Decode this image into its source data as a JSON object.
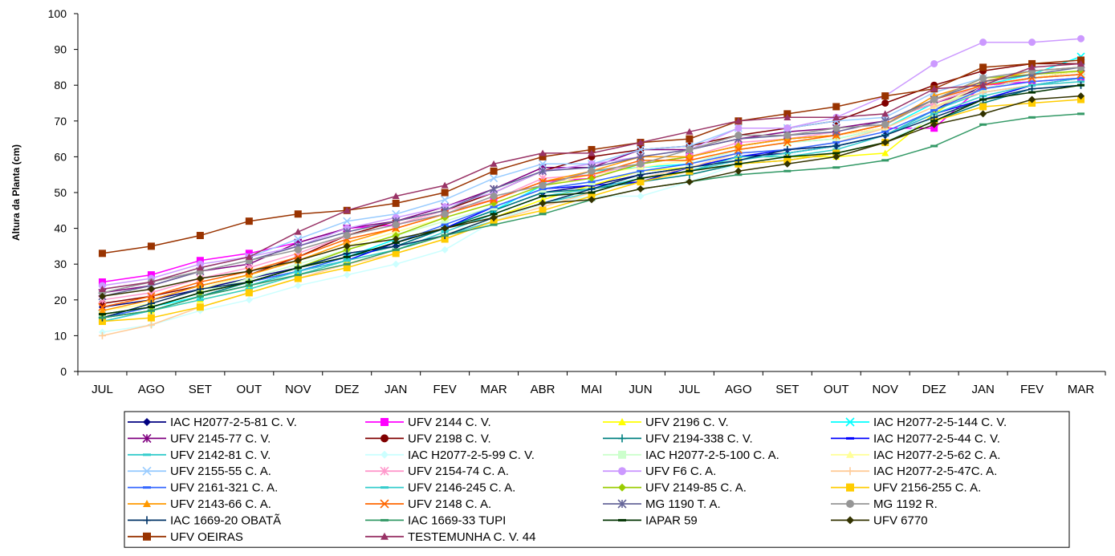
{
  "chart_data": {
    "type": "line",
    "title": "",
    "xlabel": "",
    "ylabel": "Altura da Planta (cm)",
    "ylim": [
      0,
      100
    ],
    "yticks": [
      "0",
      "10",
      "20",
      "30",
      "40",
      "50",
      "60",
      "70",
      "80",
      "90",
      "100"
    ],
    "grid": false,
    "legend_position": "bottom",
    "categories": [
      "JUL",
      "AGO",
      "SET",
      "OUT",
      "NOV",
      "DEZ",
      "JAN",
      "FEV",
      "MAR",
      "ABR",
      "MAI",
      "JUN",
      "JUL",
      "AGO",
      "SET",
      "OUT",
      "NOV",
      "DEZ",
      "JAN",
      "FEV",
      "MAR"
    ],
    "series": [
      {
        "name": "IAC H2077-2-5-81 C. V.",
        "color": "#000080",
        "marker": "diamond",
        "values": [
          18,
          20,
          23,
          26,
          29,
          33,
          35,
          40,
          45,
          50,
          52,
          55,
          57,
          60,
          61,
          63,
          66,
          73,
          80,
          82,
          83
        ]
      },
      {
        "name": "UFV 2144 C. V.",
        "color": "#FF00FF",
        "marker": "square",
        "values": [
          25,
          27,
          31,
          33,
          36,
          40,
          41,
          44,
          48,
          53,
          54,
          58,
          60,
          63,
          65,
          66,
          68,
          68,
          80,
          81,
          82
        ]
      },
      {
        "name": "UFV 2196 C. V.",
        "color": "#FFFF00",
        "marker": "triangle",
        "values": [
          15,
          17,
          20,
          23,
          27,
          31,
          34,
          38,
          43,
          48,
          52,
          56,
          57,
          60,
          60,
          60,
          61,
          72,
          81,
          83,
          84
        ]
      },
      {
        "name": "IAC H2077-2-5-144 C. V.",
        "color": "#00FFFF",
        "marker": "x",
        "values": [
          16,
          18,
          21,
          24,
          28,
          32,
          37,
          40,
          45,
          52,
          56,
          57,
          58,
          62,
          64,
          65,
          68,
          75,
          80,
          83,
          88
        ]
      },
      {
        "name": "UFV 2145-77 C. V.",
        "color": "#800080",
        "marker": "star",
        "values": [
          22,
          24,
          28,
          30,
          36,
          40,
          42,
          46,
          51,
          57,
          57,
          62,
          62,
          65,
          67,
          68,
          70,
          75,
          79,
          82,
          84
        ]
      },
      {
        "name": "UFV 2198 C. V.",
        "color": "#800000",
        "marker": "circle",
        "values": [
          19,
          21,
          24,
          27,
          32,
          38,
          42,
          45,
          50,
          56,
          60,
          62,
          63,
          66,
          68,
          70,
          75,
          80,
          84,
          86,
          86
        ]
      },
      {
        "name": "UFV 2194-338 C. V.",
        "color": "#008080",
        "marker": "plus",
        "values": [
          15,
          17,
          21,
          25,
          29,
          32,
          35,
          40,
          45,
          50,
          51,
          53,
          55,
          58,
          59,
          61,
          64,
          70,
          75,
          79,
          80
        ]
      },
      {
        "name": "IAC H2077-2-5-44 C. V.",
        "color": "#0000FF",
        "marker": "dash",
        "values": [
          16,
          18,
          22,
          25,
          28,
          31,
          36,
          40,
          46,
          51,
          52,
          53,
          57,
          60,
          62,
          63,
          66,
          72,
          76,
          80,
          82
        ]
      },
      {
        "name": "UFV 2142-81 C. V.",
        "color": "#33CCCC",
        "marker": "dash",
        "values": [
          14,
          17,
          20,
          23,
          27,
          31,
          34,
          38,
          42,
          47,
          50,
          54,
          56,
          60,
          60,
          62,
          66,
          73,
          78,
          80,
          82
        ]
      },
      {
        "name": "IAC H2077-2-5-99 C. V.",
        "color": "#CCFFFF",
        "marker": "diamond",
        "values": [
          11,
          13,
          17,
          20,
          24,
          27,
          30,
          34,
          42,
          47,
          49,
          49,
          53,
          58,
          59,
          61,
          64,
          71,
          76,
          79,
          80
        ]
      },
      {
        "name": "IAC H2077-2-5-100 C. A.",
        "color": "#CCFFCC",
        "marker": "square",
        "values": [
          16,
          18,
          22,
          26,
          30,
          34,
          38,
          42,
          46,
          51,
          53,
          56,
          58,
          62,
          64,
          65,
          68,
          74,
          79,
          82,
          83
        ]
      },
      {
        "name": "IAC H2077-2-5-62 C. A.",
        "color": "#FFFF99",
        "marker": "triangle",
        "values": [
          17,
          19,
          23,
          27,
          31,
          35,
          39,
          43,
          47,
          52,
          55,
          57,
          59,
          62,
          64,
          66,
          68,
          74,
          80,
          82,
          84
        ]
      },
      {
        "name": "UFV 2155-55 C. A.",
        "color": "#99CCFF",
        "marker": "x",
        "values": [
          23,
          25,
          29,
          32,
          37,
          42,
          44,
          48,
          54,
          58,
          58,
          62,
          63,
          68,
          68,
          70,
          71,
          78,
          82,
          84,
          85
        ]
      },
      {
        "name": "UFV 2154-74 C. A.",
        "color": "#FF99CC",
        "marker": "star",
        "values": [
          20,
          22,
          26,
          29,
          33,
          38,
          41,
          45,
          48,
          54,
          55,
          58,
          60,
          64,
          65,
          67,
          70,
          75,
          80,
          82,
          83
        ]
      },
      {
        "name": "UFV  F6 C. A.",
        "color": "#CC99FF",
        "marker": "circle",
        "values": [
          24,
          26,
          30,
          32,
          35,
          40,
          43,
          46,
          50,
          56,
          58,
          60,
          62,
          68,
          68,
          71,
          77,
          86,
          92,
          92,
          93
        ]
      },
      {
        "name": "IAC H2077-2-5-47C. A.",
        "color": "#FFCC99",
        "marker": "plus",
        "values": [
          10,
          13,
          18,
          22,
          26,
          30,
          33,
          37,
          42,
          46,
          50,
          54,
          57,
          61,
          62,
          64,
          68,
          74,
          78,
          80,
          81
        ]
      },
      {
        "name": "UFV 2161-321 C. A.",
        "color": "#3366FF",
        "marker": "dash",
        "values": [
          15,
          18,
          22,
          25,
          28,
          32,
          36,
          41,
          46,
          51,
          53,
          56,
          58,
          61,
          62,
          64,
          67,
          73,
          79,
          81,
          82
        ]
      },
      {
        "name": "UFV 2146-245 C. A.",
        "color": "#33CCCC",
        "marker": "dash",
        "values": [
          14,
          17,
          21,
          24,
          28,
          31,
          34,
          39,
          44,
          49,
          51,
          54,
          56,
          59,
          61,
          63,
          66,
          72,
          77,
          80,
          81
        ]
      },
      {
        "name": "UFV 2149-85 C. A.",
        "color": "#99CC00",
        "marker": "diamond",
        "values": [
          16,
          18,
          22,
          25,
          29,
          34,
          38,
          43,
          47,
          52,
          54,
          58,
          60,
          63,
          65,
          66,
          69,
          76,
          82,
          83,
          84
        ]
      },
      {
        "name": "UFV 2156-255 C. A.",
        "color": "#FFCC00",
        "marker": "square",
        "values": [
          14,
          15,
          18,
          22,
          26,
          29,
          33,
          37,
          42,
          45,
          49,
          53,
          56,
          58,
          59,
          61,
          64,
          70,
          74,
          75,
          76
        ]
      },
      {
        "name": "UFV 2143-66 C. A.",
        "color": "#FF9900",
        "marker": "triangle",
        "values": [
          17,
          20,
          24,
          27,
          31,
          36,
          40,
          44,
          48,
          53,
          56,
          60,
          60,
          63,
          65,
          66,
          69,
          77,
          81,
          84,
          85
        ]
      },
      {
        "name": "UFV 2148 C. A.",
        "color": "#FF6600",
        "marker": "x",
        "values": [
          18,
          21,
          25,
          28,
          32,
          37,
          40,
          44,
          48,
          53,
          55,
          59,
          59,
          62,
          64,
          66,
          69,
          76,
          80,
          82,
          83
        ]
      },
      {
        "name": "MG 1190 T. A.",
        "color": "#666699",
        "marker": "star",
        "values": [
          21,
          24,
          28,
          31,
          35,
          39,
          42,
          45,
          51,
          56,
          57,
          60,
          62,
          65,
          66,
          67,
          70,
          76,
          81,
          83,
          85
        ]
      },
      {
        "name": "MG 1192 R.",
        "color": "#969696",
        "marker": "circle",
        "values": [
          22,
          25,
          28,
          31,
          34,
          38,
          41,
          44,
          49,
          52,
          56,
          58,
          62,
          66,
          66,
          68,
          69,
          76,
          82,
          84,
          85
        ]
      },
      {
        "name": "IAC 1669-20 OBATÃ",
        "color": "#003366",
        "marker": "plus",
        "values": [
          15,
          19,
          23,
          25,
          29,
          33,
          35,
          38,
          43,
          47,
          51,
          55,
          57,
          59,
          62,
          63,
          66,
          71,
          76,
          79,
          80
        ]
      },
      {
        "name": "IAC 1669-33 TUPI",
        "color": "#339966",
        "marker": "dash",
        "values": [
          15,
          17,
          21,
          24,
          27,
          30,
          34,
          38,
          41,
          44,
          48,
          51,
          53,
          55,
          56,
          57,
          59,
          63,
          69,
          71,
          72
        ]
      },
      {
        "name": "IAPAR 59",
        "color": "#003300",
        "marker": "dash",
        "values": [
          16,
          18,
          22,
          25,
          29,
          32,
          36,
          40,
          44,
          49,
          50,
          54,
          56,
          58,
          60,
          61,
          64,
          70,
          76,
          78,
          80
        ]
      },
      {
        "name": "UFV 6770",
        "color": "#333300",
        "marker": "diamond",
        "values": [
          21,
          23,
          26,
          28,
          31,
          35,
          37,
          40,
          43,
          47,
          48,
          51,
          53,
          56,
          58,
          60,
          64,
          69,
          72,
          76,
          77
        ]
      },
      {
        "name": "UFV OEIRAS",
        "color": "#993300",
        "marker": "square",
        "values": [
          33,
          35,
          38,
          42,
          44,
          45,
          47,
          50,
          56,
          60,
          62,
          64,
          65,
          70,
          72,
          74,
          77,
          79,
          85,
          86,
          87
        ]
      },
      {
        "name": "TESTEMUNHA C. V. 44",
        "color": "#993366",
        "marker": "triangle",
        "values": [
          23,
          25,
          29,
          32,
          39,
          45,
          49,
          52,
          58,
          61,
          61,
          64,
          67,
          70,
          71,
          71,
          72,
          79,
          80,
          85,
          86
        ]
      }
    ]
  }
}
